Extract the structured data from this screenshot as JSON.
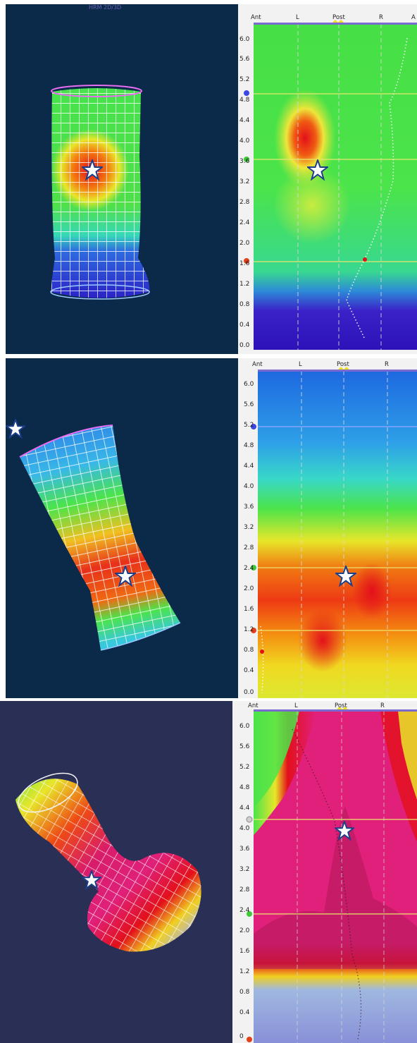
{
  "panels": [
    {
      "app_label": "HRM 2D/3D",
      "header_labels": [
        "Ant",
        "L",
        "Post",
        "R",
        "A"
      ],
      "y_ticks": [
        "6.0",
        "5.6",
        "5.2",
        "4.8",
        "4.4",
        "4.0",
        "3.6",
        "3.2",
        "2.8",
        "2.4",
        "2.0",
        "1.6",
        "1.2",
        "0.8",
        "0.4",
        "0.0"
      ],
      "colors": {
        "background": "#0b2a4a",
        "map_base": "#3fe04a",
        "hot": "#e3101a",
        "cold": "#2a1ac8"
      }
    },
    {
      "header_labels": [
        "Ant",
        "L",
        "Post",
        "R"
      ],
      "y_ticks": [
        "6.0",
        "5.6",
        "5.2",
        "4.8",
        "4.4",
        "4.0",
        "3.6",
        "3.2",
        "2.8",
        "2.4",
        "2.0",
        "1.6",
        "1.2",
        "0.8",
        "0.4",
        "0.0"
      ],
      "colors": {
        "background": "#0b2a4a",
        "map_base": "#2ec8e0",
        "hot": "#e3101a",
        "cold": "#1e5fd8"
      }
    },
    {
      "header_labels": [
        "Ant",
        "L",
        "Post",
        "R"
      ],
      "y_ticks": [
        "6.0",
        "5.6",
        "5.2",
        "4.8",
        "4.4",
        "4.0",
        "3.6",
        "3.2",
        "2.8",
        "2.4",
        "2.0",
        "1.6",
        "1.2",
        "0.8",
        "0.4",
        "0"
      ],
      "colors": {
        "background": "#2a2f55",
        "map_base": "#e0207a",
        "hot": "#e3101a",
        "cold": "#7a86d8"
      }
    }
  ]
}
